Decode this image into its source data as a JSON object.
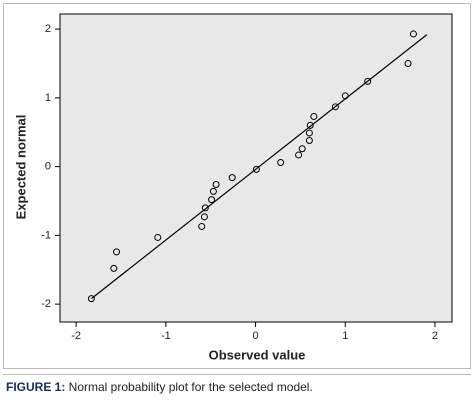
{
  "chart_data": {
    "type": "scatter",
    "x_label": "Observed value",
    "y_label": "Expected normal",
    "x": [
      -1.83,
      -1.58,
      -1.55,
      -1.09,
      -0.6,
      -0.57,
      -0.56,
      -0.49,
      -0.47,
      -0.44,
      -0.26,
      0.01,
      0.28,
      0.48,
      0.52,
      0.6,
      0.6,
      0.61,
      0.65,
      0.89,
      1.0,
      1.25,
      1.7,
      1.76
    ],
    "values": [
      -1.92,
      -1.48,
      -1.24,
      -1.03,
      -0.87,
      -0.73,
      -0.6,
      -0.48,
      -0.36,
      -0.26,
      -0.16,
      -0.04,
      0.06,
      0.17,
      0.26,
      0.38,
      0.49,
      0.6,
      0.73,
      0.87,
      1.03,
      1.24,
      1.5,
      1.93
    ],
    "reference_line": {
      "x": [
        -1.83,
        1.91
      ],
      "y": [
        -1.92,
        1.92
      ]
    },
    "xlim": [
      -2.18,
      2.19
    ],
    "ylim": [
      -2.26,
      2.22
    ],
    "xticks": [
      -2,
      -1,
      0,
      1,
      2
    ],
    "yticks": [
      -2,
      -1,
      0,
      1,
      2
    ],
    "color": "#000000",
    "background": "#e8e8e8"
  },
  "caption": {
    "label": "FIGURE 1:",
    "text": " Normal probability plot for the selected model."
  }
}
